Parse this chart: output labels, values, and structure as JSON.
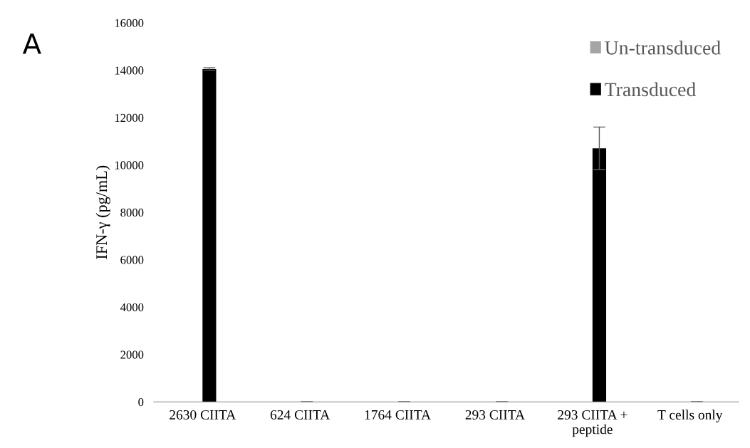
{
  "chart_data": {
    "type": "bar",
    "ylabel": "IFN-γ (pg/mL)",
    "categories": [
      "2630 CIITA",
      "624 CIITA",
      "1764 CIITA",
      "293 CIITA",
      "293 CIITA +\npeptide",
      "T cells only"
    ],
    "series": [
      {
        "name": "Un-transduced",
        "color": "#a5a5a5",
        "values": [
          0,
          0,
          0,
          0,
          0,
          0
        ]
      },
      {
        "name": "Transduced",
        "color": "#000000",
        "values": [
          14050,
          0,
          0,
          0,
          10700,
          0
        ],
        "errors": [
          50,
          null,
          null,
          null,
          900,
          null
        ]
      }
    ],
    "ylim": [
      0,
      16000
    ],
    "yticks": [
      0,
      2000,
      4000,
      6000,
      8000,
      10000,
      12000,
      14000,
      16000
    ],
    "grid": false,
    "legend": "top right",
    "annotations": [
      "A"
    ]
  }
}
